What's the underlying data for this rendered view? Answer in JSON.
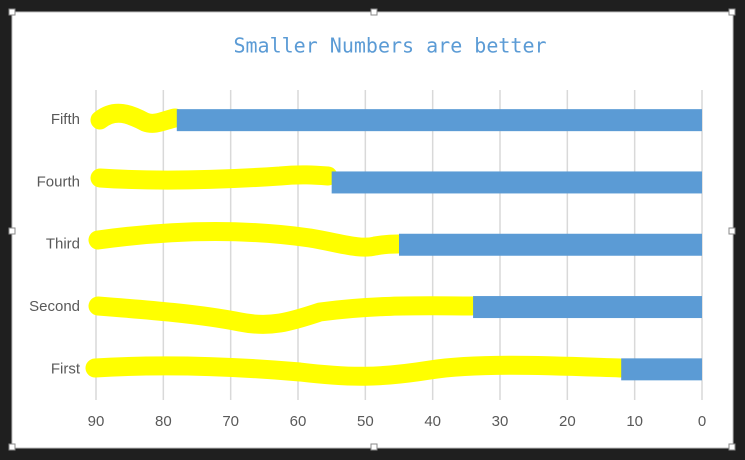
{
  "chart_data": {
    "type": "bar",
    "orientation": "horizontal",
    "title": "Smaller Numbers are better",
    "categories": [
      "First",
      "Second",
      "Third",
      "Fourth",
      "Fifth"
    ],
    "values": [
      12,
      34,
      45,
      55,
      78
    ],
    "color": "#5b9bd5",
    "xlim": [
      90,
      0
    ],
    "xticks": [
      90,
      80,
      70,
      60,
      50,
      40,
      30,
      20,
      10,
      0
    ],
    "grid": true
  }
}
